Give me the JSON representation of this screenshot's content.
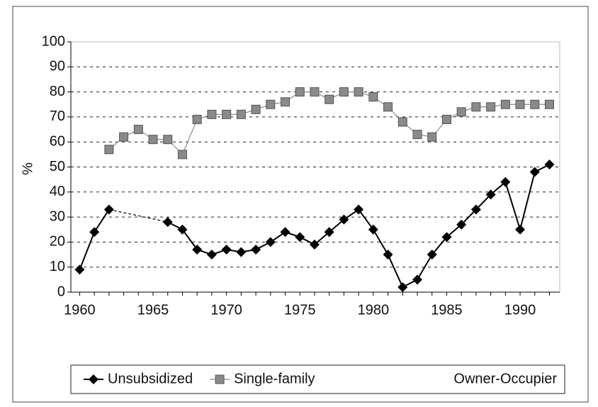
{
  "chart_data": {
    "type": "line",
    "y_label": "%",
    "x": [
      1960,
      1961,
      1962,
      1963,
      1964,
      1965,
      1966,
      1967,
      1968,
      1969,
      1970,
      1971,
      1972,
      1973,
      1974,
      1975,
      1976,
      1977,
      1978,
      1979,
      1980,
      1981,
      1982,
      1983,
      1984,
      1985,
      1986,
      1987,
      1988,
      1989,
      1990,
      1991,
      1992
    ],
    "series": [
      {
        "name": "Unsubsidized",
        "color": "#000000",
        "marker": "diamond",
        "values": [
          9,
          24,
          33,
          null,
          null,
          null,
          28,
          25,
          17,
          15,
          17,
          16,
          17,
          20,
          24,
          22,
          19,
          24,
          29,
          33,
          25,
          15,
          2,
          5,
          15,
          22,
          27,
          33,
          39,
          44,
          25,
          48,
          51
        ]
      },
      {
        "name": "Single-family",
        "color": "#8a8a8a",
        "marker": "square",
        "values": [
          null,
          null,
          57,
          62,
          65,
          61,
          61,
          55,
          69,
          71,
          71,
          71,
          73,
          75,
          76,
          80,
          80,
          77,
          80,
          80,
          78,
          74,
          68,
          63,
          62,
          69,
          72,
          74,
          74,
          75,
          75,
          75,
          75
        ]
      }
    ],
    "legend_note": "Owner-Occupier",
    "xlim": [
      1959.4,
      1992.7
    ],
    "xticks": [
      1960,
      1965,
      1970,
      1975,
      1980,
      1985,
      1990
    ],
    "ylim": [
      0,
      100
    ],
    "yticks": [
      0,
      10,
      20,
      30,
      40,
      50,
      60,
      70,
      80,
      90,
      100
    ],
    "grid": true,
    "legend": "bottom"
  }
}
